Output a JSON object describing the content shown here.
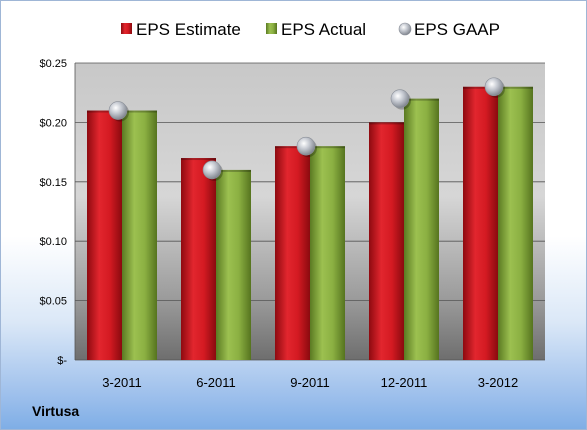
{
  "company": "Virtusa",
  "chart_data": {
    "type": "bar",
    "categories": [
      "3-2011",
      "6-2011",
      "9-2011",
      "12-2011",
      "3-2012"
    ],
    "series": [
      {
        "name": "EPS Estimate",
        "kind": "bar",
        "color": "#c0141c",
        "values": [
          0.21,
          0.17,
          0.18,
          0.2,
          0.23
        ]
      },
      {
        "name": "EPS Actual",
        "kind": "bar",
        "color": "#7fa03a",
        "values": [
          0.21,
          0.16,
          0.18,
          0.22,
          0.23
        ]
      },
      {
        "name": "EPS GAAP",
        "kind": "scatter",
        "color": "#b8bcc4",
        "values": [
          0.21,
          0.16,
          0.18,
          0.22,
          0.23
        ]
      }
    ],
    "ylim": [
      0,
      0.25
    ],
    "yticks": [
      0,
      0.05,
      0.1,
      0.15,
      0.2,
      0.25
    ],
    "ytick_labels": [
      "$-",
      "$0.05",
      "$0.10",
      "$0.15",
      "$0.20",
      "$0.25"
    ],
    "grid": true,
    "legend": "top"
  }
}
